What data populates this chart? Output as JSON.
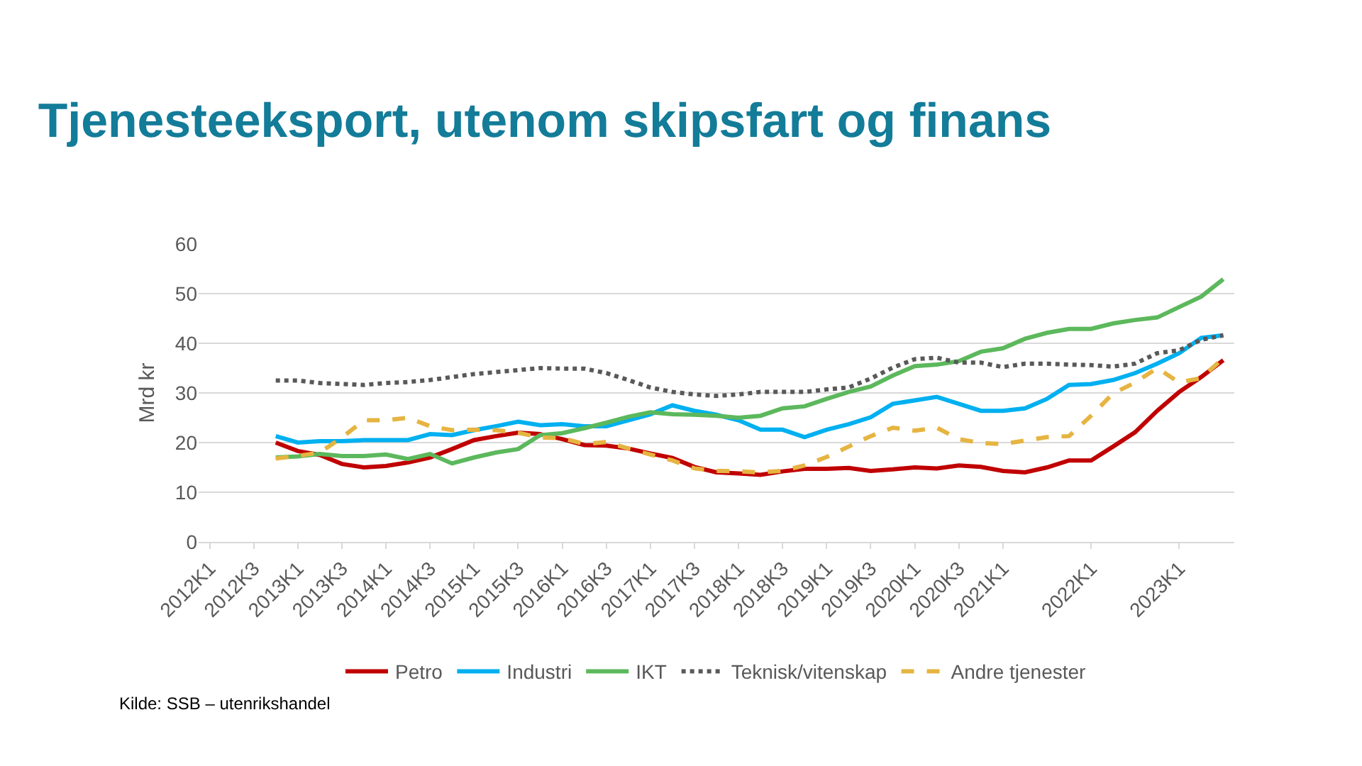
{
  "chart_data": {
    "type": "line",
    "title": "Tjenesteeksport, utenom skipsfart og finans",
    "ylabel": "Mrd kr",
    "categories": [
      "2012K1",
      null,
      "2012K3",
      null,
      "2013K1",
      null,
      "2013K3",
      null,
      "2014K1",
      null,
      "2014K3",
      null,
      "2015K1",
      null,
      "2015K3",
      null,
      "2016K1",
      null,
      "2016K3",
      null,
      "2017K1",
      null,
      "2017K3",
      null,
      "2018K1",
      null,
      "2018K3",
      null,
      "2019K1",
      null,
      "2019K3",
      null,
      "2020K1",
      null,
      "2020K3",
      null,
      "2021K1",
      null,
      null,
      null,
      "2022K1",
      null,
      null,
      null,
      "2023K1",
      null,
      null
    ],
    "series": [
      {
        "name": "Petro",
        "color": "#c00000",
        "line_style": "solid",
        "values": [
          null,
          null,
          null,
          20,
          18.3,
          17.5,
          15.7,
          15,
          15.3,
          16,
          17,
          18.7,
          20.5,
          21.3,
          22,
          21.7,
          20.7,
          19.5,
          19.4,
          18.8,
          17.8,
          16.9,
          15.1,
          14,
          13.8,
          13.5,
          14.2,
          14.7,
          14.7,
          14.9,
          14.3,
          14.6,
          15,
          14.8,
          15.4,
          15.1,
          14.3,
          14,
          15,
          16.4,
          16.4,
          19.2,
          22.1,
          26.4,
          30.2,
          33.2,
          36.6
        ]
      },
      {
        "name": "Industri",
        "color": "#00b0f0",
        "line_style": "solid",
        "values": [
          null,
          null,
          null,
          21.3,
          20,
          20.3,
          20.3,
          20.5,
          20.5,
          20.5,
          21.7,
          21.5,
          22.5,
          23.3,
          24.2,
          23.5,
          23.7,
          23.3,
          23.3,
          24.5,
          25.7,
          27.5,
          26.4,
          25.6,
          24.5,
          22.6,
          22.6,
          21.1,
          22.6,
          23.7,
          25.1,
          27.8,
          28.5,
          29.2,
          27.8,
          26.4,
          26.4,
          26.9,
          28.8,
          31.6,
          31.8,
          32.6,
          34,
          35.9,
          38,
          41.1,
          41.6
        ]
      },
      {
        "name": "IKT",
        "color": "#5cb85c",
        "line_style": "solid",
        "values": [
          null,
          null,
          null,
          17,
          17.2,
          17.7,
          17.3,
          17.3,
          17.6,
          16.7,
          17.7,
          15.8,
          17,
          18,
          18.7,
          21.5,
          21.9,
          22.9,
          24,
          25.2,
          26.1,
          25.7,
          25.6,
          25.4,
          25,
          25.4,
          26.9,
          27.3,
          28.8,
          30.2,
          31.3,
          33.5,
          35.4,
          35.7,
          36.4,
          38.3,
          39,
          40.9,
          42.1,
          42.9,
          42.9,
          44,
          44.7,
          45.2,
          47.3,
          49.4,
          52.9
        ]
      },
      {
        "name": "Teknisk/vitenskap",
        "color": "#595959",
        "line_style": "dotted",
        "values": [
          null,
          null,
          null,
          32.5,
          32.5,
          32,
          31.8,
          31.6,
          32,
          32.2,
          32.6,
          33.2,
          33.8,
          34.2,
          34.6,
          35,
          34.9,
          34.9,
          34,
          32.6,
          31.1,
          30.2,
          29.7,
          29.4,
          29.7,
          30.2,
          30.2,
          30.2,
          30.7,
          31.1,
          32.9,
          35.1,
          36.8,
          37.1,
          36.1,
          36.1,
          35.2,
          35.9,
          35.9,
          35.7,
          35.6,
          35.3,
          35.9,
          38,
          38.6,
          40.7,
          41.6
        ]
      },
      {
        "name": "Andre tjenester",
        "color": "#e6b441",
        "line_style": "dashed",
        "values": [
          null,
          null,
          null,
          16.8,
          17.3,
          18,
          21,
          24.5,
          24.5,
          25,
          23.3,
          22.5,
          22.6,
          22.5,
          22,
          21,
          20.9,
          19.7,
          20.1,
          18.8,
          17.6,
          16.4,
          14.8,
          14.3,
          14.2,
          14,
          14.3,
          15.4,
          17.1,
          19.2,
          21.3,
          23,
          22.4,
          23,
          20.7,
          19.9,
          19.7,
          20.4,
          21.1,
          21.3,
          25.4,
          29.9,
          32.1,
          35,
          32.1,
          33,
          37
        ]
      }
    ],
    "ylim": [
      0,
      60
    ],
    "yticks": [
      0,
      10,
      20,
      30,
      40,
      50,
      60
    ],
    "grid": "y",
    "legend": "bottom",
    "marker": "none",
    "annotations": [
      "Kilde: SSB – utenrikshandel"
    ]
  }
}
